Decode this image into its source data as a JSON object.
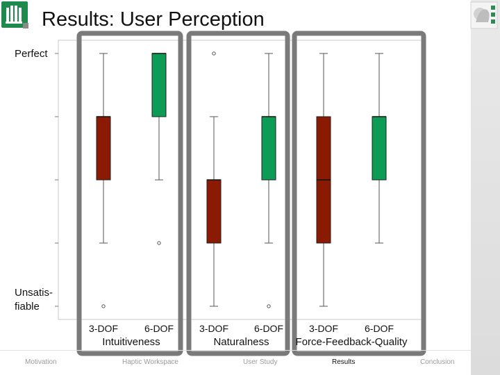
{
  "slide": {
    "title": "Results: User Perception",
    "y_label_top": "Perfect",
    "y_label_bottom_lines": [
      "Unsatis-",
      "fiable"
    ],
    "nav": [
      {
        "label": "Motivation",
        "active": false
      },
      {
        "label": "Haptic Workspace",
        "active": false
      },
      {
        "label": "User Study",
        "active": false
      },
      {
        "label": "Results",
        "active": true
      },
      {
        "label": "Conclusion",
        "active": false
      }
    ]
  },
  "colors": {
    "dof3": "#8b1a02",
    "dof6": "#0c9c56",
    "frame": "#7a7a7a",
    "logo": "#1f8a4d"
  },
  "chart_data": {
    "type": "box",
    "ylim": [
      1,
      5
    ],
    "y_axis_top_label": "Perfect",
    "y_axis_bottom_label": "Unsatisfiable",
    "groups": [
      {
        "label": "Intuitiveness",
        "boxes": [
          {
            "category": "3-DOF",
            "whisker_low": 2,
            "q1": 3,
            "median": 4,
            "q3": 4,
            "whisker_high": 5,
            "outliers": [
              1
            ]
          },
          {
            "category": "6-DOF",
            "whisker_low": 3,
            "q1": 4,
            "median": 5,
            "q3": 5,
            "whisker_high": 5,
            "outliers": [
              2
            ]
          }
        ]
      },
      {
        "label": "Naturalness",
        "boxes": [
          {
            "category": "3-DOF",
            "whisker_low": 1,
            "q1": 2,
            "median": 3,
            "q3": 3,
            "whisker_high": 4,
            "outliers": [
              5
            ]
          },
          {
            "category": "6-DOF",
            "whisker_low": 2,
            "q1": 3,
            "median": 4,
            "q3": 4,
            "whisker_high": 5,
            "outliers": [
              1
            ]
          }
        ]
      },
      {
        "label": "Force-Feedback-Quality",
        "boxes": [
          {
            "category": "3-DOF",
            "whisker_low": 1,
            "q1": 2,
            "median": 3,
            "q3": 4,
            "whisker_high": 5,
            "outliers": []
          },
          {
            "category": "6-DOF",
            "whisker_low": 2,
            "q1": 3,
            "median": 4,
            "q3": 4,
            "whisker_high": 5,
            "outliers": []
          }
        ]
      }
    ]
  }
}
